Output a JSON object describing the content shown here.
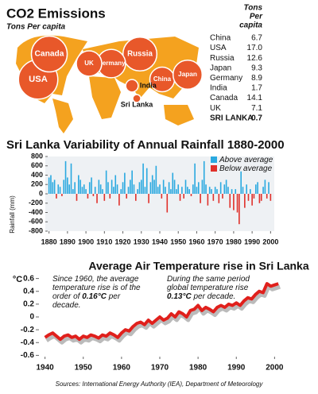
{
  "chart_data": [
    {
      "type": "bubble-map",
      "title": "CO2 Emissions",
      "subtitle": "Tons Per capita",
      "column_header": [
        "Tons",
        "Per",
        "capita"
      ],
      "categories": [
        "China",
        "USA",
        "Russia",
        "Japan",
        "Germany",
        "India",
        "Canada",
        "UK",
        "SRI LANKA"
      ],
      "map_labels": [
        "China",
        "USA",
        "Russia",
        "Japan",
        "Germany",
        "India",
        "Canada",
        "UK",
        "Sri Lanka"
      ],
      "values": [
        6.7,
        17.0,
        12.6,
        9.3,
        8.9,
        1.7,
        14.1,
        7.1,
        0.7
      ],
      "value_labels": [
        "6.7",
        "17.0",
        "12.6",
        "9.3",
        "8.9",
        "1.7",
        "14.1",
        "7.1",
        "0.7"
      ],
      "bold_rows": [
        8
      ],
      "color": "#e8582a",
      "map_color": "#f4a21f"
    },
    {
      "type": "bar",
      "title": "Sri Lanka Variability of Annual Rainfall 1880-2000",
      "y_label": "Rainfall (mm)",
      "legend": [
        {
          "name": "Above average",
          "color": "#2aa9e0"
        },
        {
          "name": "Below average",
          "color": "#e0302a"
        }
      ],
      "legend_position": "upper right",
      "x": [
        1880,
        1881,
        1882,
        1883,
        1884,
        1885,
        1886,
        1887,
        1888,
        1889,
        1890,
        1891,
        1892,
        1893,
        1894,
        1895,
        1896,
        1897,
        1898,
        1899,
        1900,
        1901,
        1902,
        1903,
        1904,
        1905,
        1906,
        1907,
        1908,
        1909,
        1910,
        1911,
        1912,
        1913,
        1914,
        1915,
        1916,
        1917,
        1918,
        1919,
        1920,
        1921,
        1922,
        1923,
        1924,
        1925,
        1926,
        1927,
        1928,
        1929,
        1930,
        1931,
        1932,
        1933,
        1934,
        1935,
        1936,
        1937,
        1938,
        1939,
        1940,
        1941,
        1942,
        1943,
        1944,
        1945,
        1946,
        1947,
        1948,
        1949,
        1950,
        1951,
        1952,
        1953,
        1954,
        1955,
        1956,
        1957,
        1958,
        1959,
        1960,
        1961,
        1962,
        1963,
        1964,
        1965,
        1966,
        1967,
        1968,
        1969,
        1970,
        1971,
        1972,
        1973,
        1974,
        1975,
        1976,
        1977,
        1978,
        1979,
        1980,
        1981,
        1982,
        1983,
        1984,
        1985,
        1986,
        1987,
        1988,
        1989,
        1990,
        1991,
        1992,
        1993,
        1994,
        1995,
        1996,
        1997,
        1998,
        1999,
        2000
      ],
      "values": [
        350,
        400,
        250,
        300,
        -100,
        200,
        150,
        -50,
        300,
        700,
        350,
        200,
        650,
        100,
        250,
        -150,
        400,
        300,
        150,
        200,
        100,
        -100,
        250,
        350,
        -50,
        150,
        -200,
        300,
        200,
        100,
        -150,
        500,
        250,
        -100,
        300,
        150,
        400,
        200,
        -250,
        100,
        250,
        450,
        -100,
        150,
        300,
        500,
        200,
        -150,
        100,
        250,
        300,
        650,
        150,
        550,
        -200,
        250,
        400,
        300,
        600,
        150,
        200,
        -100,
        300,
        150,
        -400,
        250,
        100,
        450,
        300,
        100,
        200,
        -150,
        150,
        -100,
        300,
        150,
        100,
        -50,
        200,
        650,
        150,
        250,
        -200,
        300,
        700,
        200,
        -250,
        150,
        100,
        -150,
        150,
        100,
        -200,
        250,
        -100,
        200,
        300,
        150,
        -300,
        100,
        -350,
        100,
        -400,
        -650,
        480,
        150,
        -300,
        200,
        -150,
        100,
        -250,
        -100,
        200,
        250,
        -200,
        -150,
        150,
        300,
        -100,
        250,
        -150
      ],
      "xlim": [
        1878,
        2002
      ],
      "xticks": [
        1880,
        1890,
        1900,
        1910,
        1920,
        1930,
        1940,
        1950,
        1960,
        1970,
        1980,
        1990,
        2000
      ],
      "ylim": [
        -800,
        800
      ],
      "yticks": [
        800,
        600,
        400,
        200,
        0,
        -200,
        -400,
        -600,
        -800
      ]
    },
    {
      "type": "line",
      "title": "Average Air Temperature rise in Sri Lanka",
      "y_label": "°C",
      "color": "#e0201c",
      "annotations": [
        {
          "text": "Since 1960, the average temperature rise is of the order of",
          "highlight": "0.16°C",
          "after": "per decade."
        },
        {
          "text": "During the same period global temperature rise",
          "highlight": "0.13°C",
          "after": "per decade."
        }
      ],
      "x": [
        1940,
        1941,
        1942,
        1943,
        1944,
        1945,
        1946,
        1947,
        1948,
        1949,
        1950,
        1951,
        1952,
        1953,
        1954,
        1955,
        1956,
        1957,
        1958,
        1959,
        1960,
        1961,
        1962,
        1963,
        1964,
        1965,
        1966,
        1967,
        1968,
        1969,
        1970,
        1971,
        1972,
        1973,
        1974,
        1975,
        1976,
        1977,
        1978,
        1979,
        1980,
        1981,
        1982,
        1983,
        1984,
        1985,
        1986,
        1987,
        1988,
        1989,
        1990,
        1991,
        1992,
        1993,
        1994,
        1995,
        1996,
        1997,
        1998,
        1999,
        2000,
        2001
      ],
      "values": [
        -0.32,
        -0.28,
        -0.25,
        -0.3,
        -0.35,
        -0.3,
        -0.28,
        -0.32,
        -0.3,
        -0.35,
        -0.3,
        -0.32,
        -0.28,
        -0.3,
        -0.33,
        -0.28,
        -0.3,
        -0.25,
        -0.28,
        -0.32,
        -0.25,
        -0.2,
        -0.22,
        -0.15,
        -0.1,
        -0.08,
        -0.12,
        -0.05,
        -0.1,
        -0.05,
        0.0,
        -0.05,
        -0.02,
        0.05,
        0.0,
        0.08,
        0.05,
        0.0,
        0.1,
        0.12,
        0.18,
        0.1,
        0.15,
        0.12,
        0.08,
        0.15,
        0.18,
        0.15,
        0.2,
        0.18,
        0.22,
        0.18,
        0.25,
        0.3,
        0.28,
        0.35,
        0.4,
        0.38,
        0.52,
        0.48,
        0.5,
        0.52
      ],
      "xlim": [
        1938,
        2002
      ],
      "xticks": [
        1940,
        1950,
        1960,
        1970,
        1980,
        1990,
        2000
      ],
      "ylim": [
        -0.62,
        0.62
      ],
      "yticks": [
        0.6,
        0.4,
        0.2,
        0,
        -0.2,
        -0.4,
        -0.6
      ]
    }
  ],
  "source": "Sources:  International Energy Authority (IEA), Department of Meteorology"
}
